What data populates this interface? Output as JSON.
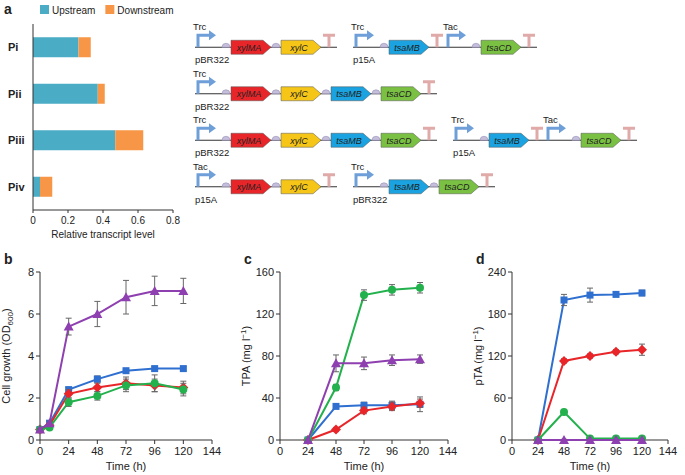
{
  "chart_data": [
    {
      "type": "bar",
      "title": "a",
      "orientation": "horizontal",
      "stacked": true,
      "legend": "top",
      "categories": [
        "Pi",
        "Pii",
        "Piii",
        "Piv"
      ],
      "series": [
        {
          "name": "Upstream",
          "color": "#4bacc6",
          "values": [
            0.26,
            0.37,
            0.47,
            0.04
          ]
        },
        {
          "name": "Downstream",
          "color": "#f79646",
          "values": [
            0.07,
            0.04,
            0.16,
            0.07
          ]
        }
      ],
      "xlim": [
        0,
        0.8
      ],
      "xticks": [
        0,
        0.2,
        0.4,
        0.6,
        0.8
      ],
      "xlabel": "Relative transcript level"
    },
    {
      "type": "line",
      "title": "b",
      "xlabel": "Time (h)",
      "ylabel": "Cell growth (OD600)",
      "x": [
        0,
        8,
        24,
        48,
        72,
        96,
        120
      ],
      "xlim": [
        0,
        144
      ],
      "xticks": [
        0,
        24,
        48,
        72,
        96,
        120,
        144
      ],
      "ylim": [
        0,
        8
      ],
      "yticks": [
        0,
        2,
        4,
        6,
        8
      ],
      "series": [
        {
          "color": "#2e6fd0",
          "marker": "square",
          "values": [
            0.5,
            0.8,
            2.4,
            2.9,
            3.3,
            3.4,
            3.4
          ],
          "errors": [
            0.05,
            0.1,
            0.1,
            0.15,
            0.1,
            0.1,
            0.1
          ]
        },
        {
          "color": "#e8262a",
          "marker": "diamond",
          "values": [
            0.5,
            0.7,
            2.2,
            2.5,
            2.7,
            2.6,
            2.5
          ],
          "errors": [
            0.05,
            0.1,
            0.2,
            0.2,
            0.3,
            0.3,
            0.3
          ]
        },
        {
          "color": "#22b14c",
          "marker": "circle",
          "values": [
            0.5,
            0.6,
            1.8,
            2.1,
            2.6,
            2.7,
            2.4
          ],
          "errors": [
            0.05,
            0.1,
            0.2,
            0.2,
            0.3,
            0.4,
            0.3
          ]
        },
        {
          "color": "#8e3fb0",
          "marker": "triangle",
          "values": [
            0.5,
            0.8,
            5.4,
            6.0,
            6.8,
            7.1,
            7.1
          ],
          "errors": [
            0.05,
            0.1,
            0.4,
            0.6,
            0.8,
            0.7,
            0.6
          ]
        }
      ]
    },
    {
      "type": "line",
      "title": "c",
      "xlabel": "Time (h)",
      "ylabel": "TPA (mg l−1)",
      "x": [
        24,
        48,
        72,
        96,
        120
      ],
      "xlim": [
        0,
        144
      ],
      "xticks": [
        0,
        24,
        48,
        72,
        96,
        120,
        144
      ],
      "ylim": [
        0,
        160
      ],
      "yticks": [
        0,
        40,
        80,
        120,
        160
      ],
      "series": [
        {
          "color": "#2e6fd0",
          "marker": "square",
          "values": [
            0,
            32,
            33,
            33,
            34
          ],
          "errors": [
            0,
            2,
            3,
            4,
            7
          ]
        },
        {
          "color": "#e8262a",
          "marker": "diamond",
          "values": [
            0,
            10,
            28,
            32,
            35
          ],
          "errors": [
            0,
            2,
            3,
            4,
            4
          ]
        },
        {
          "color": "#22b14c",
          "marker": "circle",
          "values": [
            0,
            50,
            138,
            143,
            145
          ],
          "errors": [
            0,
            3,
            5,
            5,
            5
          ]
        },
        {
          "color": "#8e3fb0",
          "marker": "triangle",
          "values": [
            0,
            73,
            73,
            76,
            77
          ],
          "errors": [
            0,
            8,
            6,
            5,
            4
          ]
        }
      ]
    },
    {
      "type": "line",
      "title": "d",
      "xlabel": "Time (h)",
      "ylabel": "pTA (mg l−1)",
      "x": [
        24,
        48,
        72,
        96,
        120
      ],
      "xlim": [
        0,
        144
      ],
      "xticks": [
        0,
        24,
        48,
        72,
        96,
        120,
        144
      ],
      "ylim": [
        0,
        240
      ],
      "yticks": [
        0,
        60,
        120,
        180,
        240
      ],
      "series": [
        {
          "color": "#2e6fd0",
          "marker": "square",
          "values": [
            0,
            200,
            207,
            208,
            210
          ],
          "errors": [
            0,
            8,
            10,
            3,
            4
          ]
        },
        {
          "color": "#e8262a",
          "marker": "diamond",
          "values": [
            0,
            113,
            120,
            126,
            129
          ],
          "errors": [
            0,
            3,
            3,
            3,
            8
          ]
        },
        {
          "color": "#22b14c",
          "marker": "circle",
          "values": [
            0,
            40,
            2,
            2,
            2
          ],
          "errors": [
            0,
            3,
            1,
            1,
            1
          ]
        },
        {
          "color": "#8e3fb0",
          "marker": "triangle",
          "values": [
            0,
            0,
            0,
            0,
            0
          ],
          "errors": [
            0,
            1,
            1,
            1,
            1
          ]
        }
      ]
    }
  ],
  "constructs": [
    {
      "plasmids": [
        {
          "origin": "pBR322",
          "units": [
            {
              "promoter": "Trc",
              "genes": [
                {
                  "name": "xylMA",
                  "color": "#e8262a"
                },
                {
                  "name": "xylC",
                  "color": "#f5c518"
                }
              ]
            }
          ]
        },
        {
          "origin": "p15A",
          "units": [
            {
              "promoter": "Trc",
              "genes": [
                {
                  "name": "tsaMB",
                  "color": "#1aa3e0"
                }
              ]
            },
            {
              "promoter": "Tac",
              "genes": [
                {
                  "name": "tsaCD",
                  "color": "#7ac143"
                }
              ]
            }
          ]
        }
      ]
    },
    {
      "plasmids": [
        {
          "origin": "pBR322",
          "units": [
            {
              "promoter": "Trc",
              "genes": [
                {
                  "name": "xylMA",
                  "color": "#e8262a"
                },
                {
                  "name": "xylC",
                  "color": "#f5c518"
                },
                {
                  "name": "tsaMB",
                  "color": "#1aa3e0"
                },
                {
                  "name": "tsaCD",
                  "color": "#7ac143"
                }
              ]
            }
          ]
        }
      ]
    },
    {
      "plasmids": [
        {
          "origin": "pBR322",
          "units": [
            {
              "promoter": "Trc",
              "genes": [
                {
                  "name": "xylMA",
                  "color": "#e8262a"
                },
                {
                  "name": "xylC",
                  "color": "#f5c518"
                },
                {
                  "name": "tsaMB",
                  "color": "#1aa3e0"
                },
                {
                  "name": "tsaCD",
                  "color": "#7ac143"
                }
              ]
            }
          ]
        },
        {
          "origin": "p15A",
          "units": [
            {
              "promoter": "Trc",
              "genes": [
                {
                  "name": "tsaMB",
                  "color": "#1aa3e0"
                }
              ]
            },
            {
              "promoter": "Tac",
              "genes": [
                {
                  "name": "tsaCD",
                  "color": "#7ac143"
                }
              ]
            }
          ]
        }
      ]
    },
    {
      "plasmids": [
        {
          "origin": "p15A",
          "units": [
            {
              "promoter": "Tac",
              "genes": [
                {
                  "name": "xylMA",
                  "color": "#e8262a"
                },
                {
                  "name": "xylC",
                  "color": "#f5c518"
                }
              ]
            }
          ]
        },
        {
          "origin": "pBR322",
          "units": [
            {
              "promoter": "Trc",
              "genes": [
                {
                  "name": "tsaMB",
                  "color": "#1aa3e0"
                },
                {
                  "name": "tsaCD",
                  "color": "#7ac143"
                }
              ]
            }
          ]
        }
      ]
    }
  ]
}
